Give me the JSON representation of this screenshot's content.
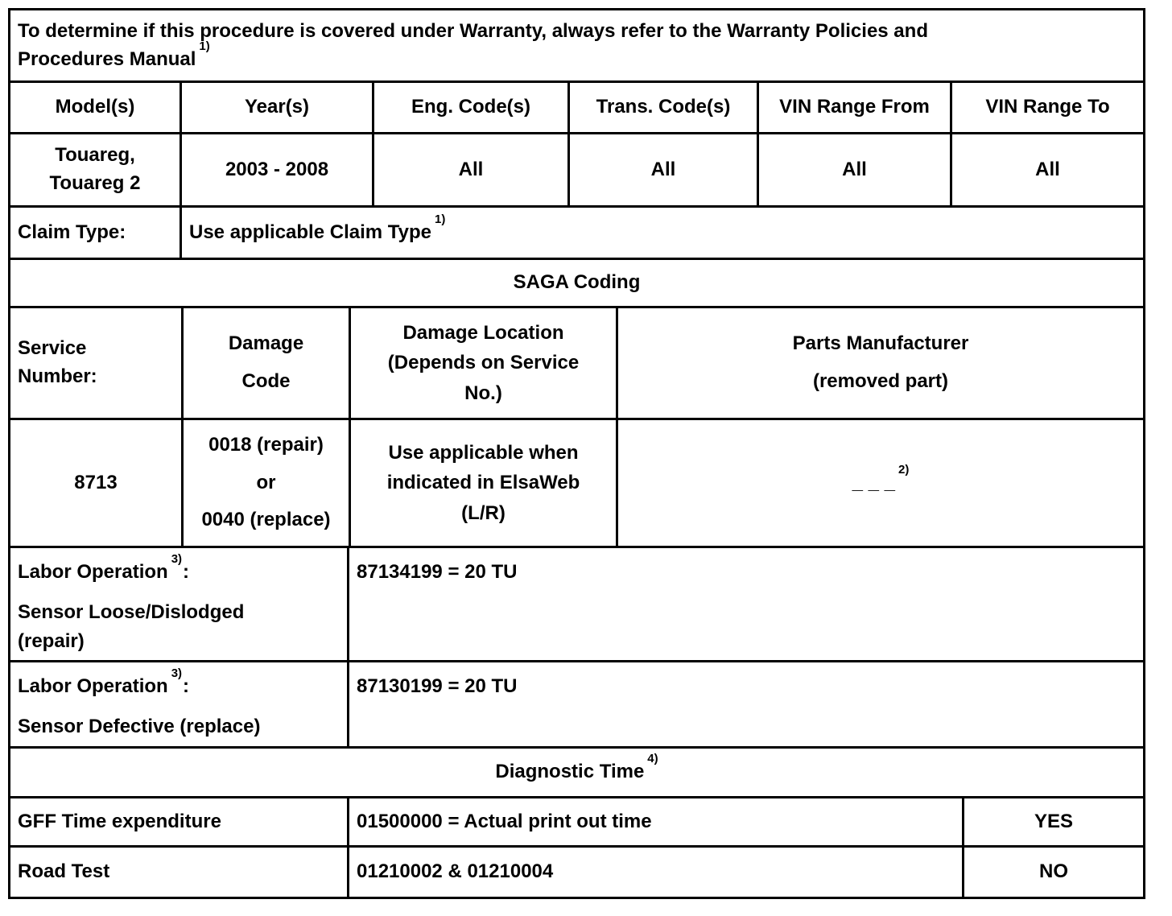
{
  "colors": {
    "border": "#000000",
    "background": "#ffffff",
    "text": "#000000"
  },
  "note": {
    "text": "To determine if this procedure is covered under Warranty, always refer to the Warranty Policies and\nProcedures Manual",
    "sup": "1)"
  },
  "vehicle_table": {
    "headers": [
      "Model(s)",
      "Year(s)",
      "Eng. Code(s)",
      "Trans. Code(s)",
      "VIN Range From",
      "VIN Range To"
    ],
    "row": [
      "Touareg,\nTouareg 2",
      "2003 - 2008",
      "All",
      "All",
      "All",
      "All"
    ]
  },
  "claim": {
    "label": "Claim Type:",
    "value": "Use applicable Claim Type",
    "sup": "1)"
  },
  "saga": {
    "title": "SAGA Coding",
    "headers": {
      "service": "Service\nNumber:",
      "damage_code": "Damage\nCode",
      "damage_location": "Damage Location\n(Depends on Service\nNo.)",
      "parts_manufacturer": "Parts Manufacturer\n(removed part)"
    },
    "row": {
      "service": "8713",
      "damage_code": "0018 (repair)\nor\n0040 (replace)",
      "damage_location": "Use applicable when\nindicated in ElsaWeb\n(L/R)",
      "parts_placeholder": "_ _ _",
      "parts_sup": "2)"
    }
  },
  "labor_operations": [
    {
      "title": "Labor Operation",
      "sup": "3)",
      "colon": ":",
      "description": "Sensor Loose/Dislodged\n(repair)",
      "code": "87134199 = 20 TU"
    },
    {
      "title": "Labor Operation",
      "sup": "3)",
      "colon": ":",
      "description": "Sensor Defective (replace)",
      "code": "87130199 = 20 TU"
    }
  ],
  "diagnostic": {
    "title": "Diagnostic Time",
    "sup": "4)",
    "rows": [
      {
        "label": "GFF Time expenditure",
        "code": "01500000 = Actual print out time",
        "flag": "YES"
      },
      {
        "label": "Road Test",
        "code": "01210002 & 01210004",
        "flag": "NO"
      }
    ]
  }
}
